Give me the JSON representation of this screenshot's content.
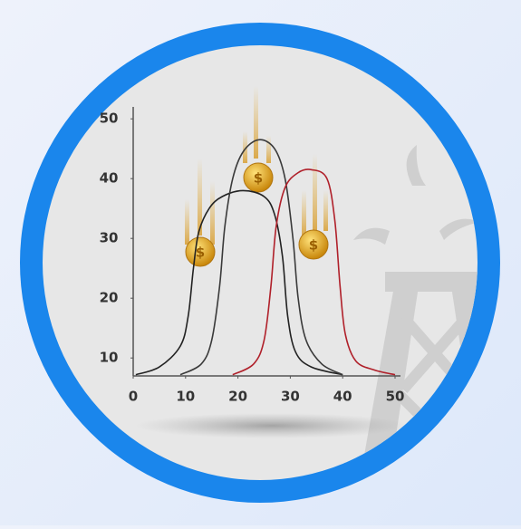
{
  "chart_data": {
    "type": "line",
    "xlim": [
      0,
      50
    ],
    "xticks": [
      0,
      10,
      20,
      30,
      40,
      50
    ],
    "ylim": [
      7,
      52
    ],
    "yticks": [
      10,
      20,
      30,
      40,
      50
    ],
    "series": [
      {
        "color": "#222222",
        "x": [
          0.5,
          5,
          9,
          10.5,
          11.5,
          12.5,
          14.5,
          17,
          21,
          25,
          27,
          28.5,
          29.5,
          31,
          34,
          40
        ],
        "values": [
          7.2,
          8.5,
          12,
          17,
          25,
          31,
          35,
          37,
          38,
          37,
          34,
          27,
          17,
          11,
          8.5,
          7.2
        ]
      },
      {
        "color": "#3a3a3a",
        "x": [
          9,
          13,
          15,
          16.5,
          17.5,
          19,
          21,
          24,
          27,
          29,
          30.5,
          31.5,
          33,
          36,
          40
        ],
        "values": [
          7.2,
          9,
          13,
          22,
          32,
          40,
          44.5,
          46.5,
          45,
          40,
          30,
          20,
          13,
          9,
          7.2
        ]
      },
      {
        "color": "#b0202a",
        "x": [
          19,
          23,
          25,
          26.3,
          27.3,
          29,
          31.5,
          34,
          37,
          38.5,
          39.5,
          40.5,
          42.5,
          46,
          50
        ],
        "values": [
          7.2,
          9,
          13,
          22,
          32,
          38.5,
          41,
          41.5,
          40,
          33,
          22,
          14,
          9.5,
          8,
          7.2
        ]
      }
    ]
  }
}
